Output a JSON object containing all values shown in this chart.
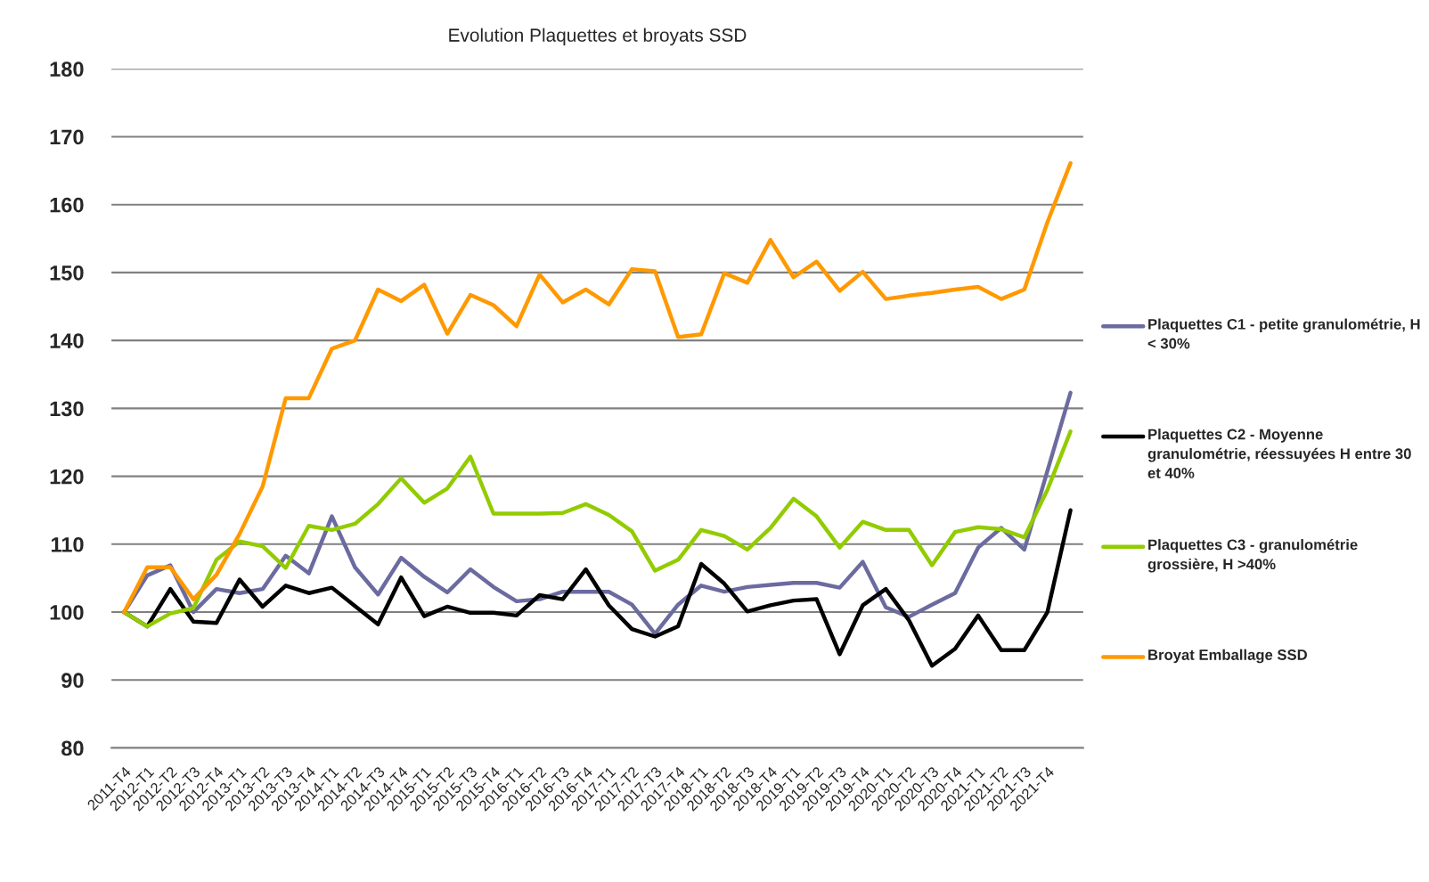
{
  "chart_data": {
    "type": "line",
    "title": "Evolution Plaquettes et broyats SSD",
    "categories": [
      "2011-T4",
      "2012-T1",
      "2012-T2",
      "2012-T3",
      "2012-T4",
      "2013-T1",
      "2013-T2",
      "2013-T3",
      "2013-T4",
      "2014-T1",
      "2014-T2",
      "2014-T3",
      "2014-T4",
      "2015-T1",
      "2015-T2",
      "2015-T3",
      "2015-T4",
      "2016-T1",
      "2016-T2",
      "2016-T3",
      "2016-T4",
      "2017-T1",
      "2017-T2",
      "2017-T3",
      "2017-T4",
      "2018-T1",
      "2018-T2",
      "2018-T3",
      "2018-T4",
      "2019-T1",
      "2019-T2",
      "2019-T3",
      "2019-T4",
      "2020-T1",
      "2020-T2",
      "2020-T3",
      "2020-T4",
      "2021-T1",
      "2021-T2",
      "2021-T3",
      "2021-T4",
      null
    ],
    "series": [
      {
        "name": "Plaquettes C1 - petite granulométrie, H < 30%",
        "color": "#6b6ba0",
        "values": [
          100,
          105.4,
          106.9,
          100,
          103.4,
          102.8,
          103.4,
          108.3,
          105.7,
          114.1,
          106.6,
          102.6,
          108,
          105.2,
          102.9,
          106.3,
          103.7,
          101.6,
          101.9,
          103,
          103,
          103,
          101.1,
          96.8,
          101.1,
          103.9,
          103,
          103.7,
          104,
          104.3,
          104.3,
          103.6,
          107.4,
          100.7,
          99.3,
          101.1,
          102.8,
          109.5,
          112.4,
          109.2,
          120.8,
          132.3
        ]
      },
      {
        "name": "Plaquettes C2 - Moyenne granulométrie, réessuyées H entre 30 et 40%",
        "color": "#000000",
        "values": [
          100,
          97.9,
          103.4,
          98.6,
          98.4,
          104.8,
          100.8,
          103.9,
          102.8,
          103.6,
          100.9,
          98.2,
          105.1,
          99.4,
          100.8,
          99.9,
          99.9,
          99.5,
          102.5,
          101.9,
          106.3,
          101,
          97.5,
          96.4,
          97.9,
          107.1,
          104.2,
          100.1,
          101,
          101.7,
          101.9,
          93.8,
          101,
          103.4,
          98.8,
          92.1,
          94.6,
          99.5,
          94.4,
          94.4,
          100,
          115
        ]
      },
      {
        "name": "Plaquettes C3 - granulométrie grossière, H >40%",
        "color": "#92cc00",
        "values": [
          100,
          97.9,
          99.8,
          100.6,
          107.7,
          110.4,
          109.7,
          106.5,
          112.7,
          112.1,
          113,
          115.9,
          119.7,
          116.1,
          118.2,
          122.9,
          114.5,
          114.5,
          114.5,
          114.6,
          115.9,
          114.3,
          111.9,
          106.1,
          107.7,
          112.1,
          111.2,
          109.2,
          112.4,
          116.7,
          114.1,
          109.5,
          113.3,
          112.1,
          112.1,
          106.9,
          111.8,
          112.5,
          112.2,
          111,
          118,
          126.6
        ]
      },
      {
        "name": "Broyat Emballage SSD",
        "color": "#ff9900",
        "values": [
          100,
          106.6,
          106.6,
          101.9,
          105.5,
          111.5,
          118.5,
          131.5,
          131.5,
          138.8,
          140,
          147.5,
          145.8,
          148.2,
          141,
          146.7,
          145.2,
          142.1,
          149.7,
          145.6,
          147.5,
          145.3,
          150.5,
          150.2,
          140.5,
          140.9,
          149.9,
          148.5,
          154.8,
          149.3,
          151.6,
          147.3,
          150.1,
          146.1,
          146.6,
          147,
          147.5,
          147.9,
          146.1,
          147.5,
          157.4,
          166.1
        ]
      }
    ],
    "ylim": [
      80,
      180
    ],
    "yticks": [
      80,
      90,
      100,
      110,
      120,
      130,
      140,
      150,
      160,
      170,
      180
    ],
    "grid": "y",
    "legend": "right",
    "marker": "none",
    "line_style": "solid"
  }
}
